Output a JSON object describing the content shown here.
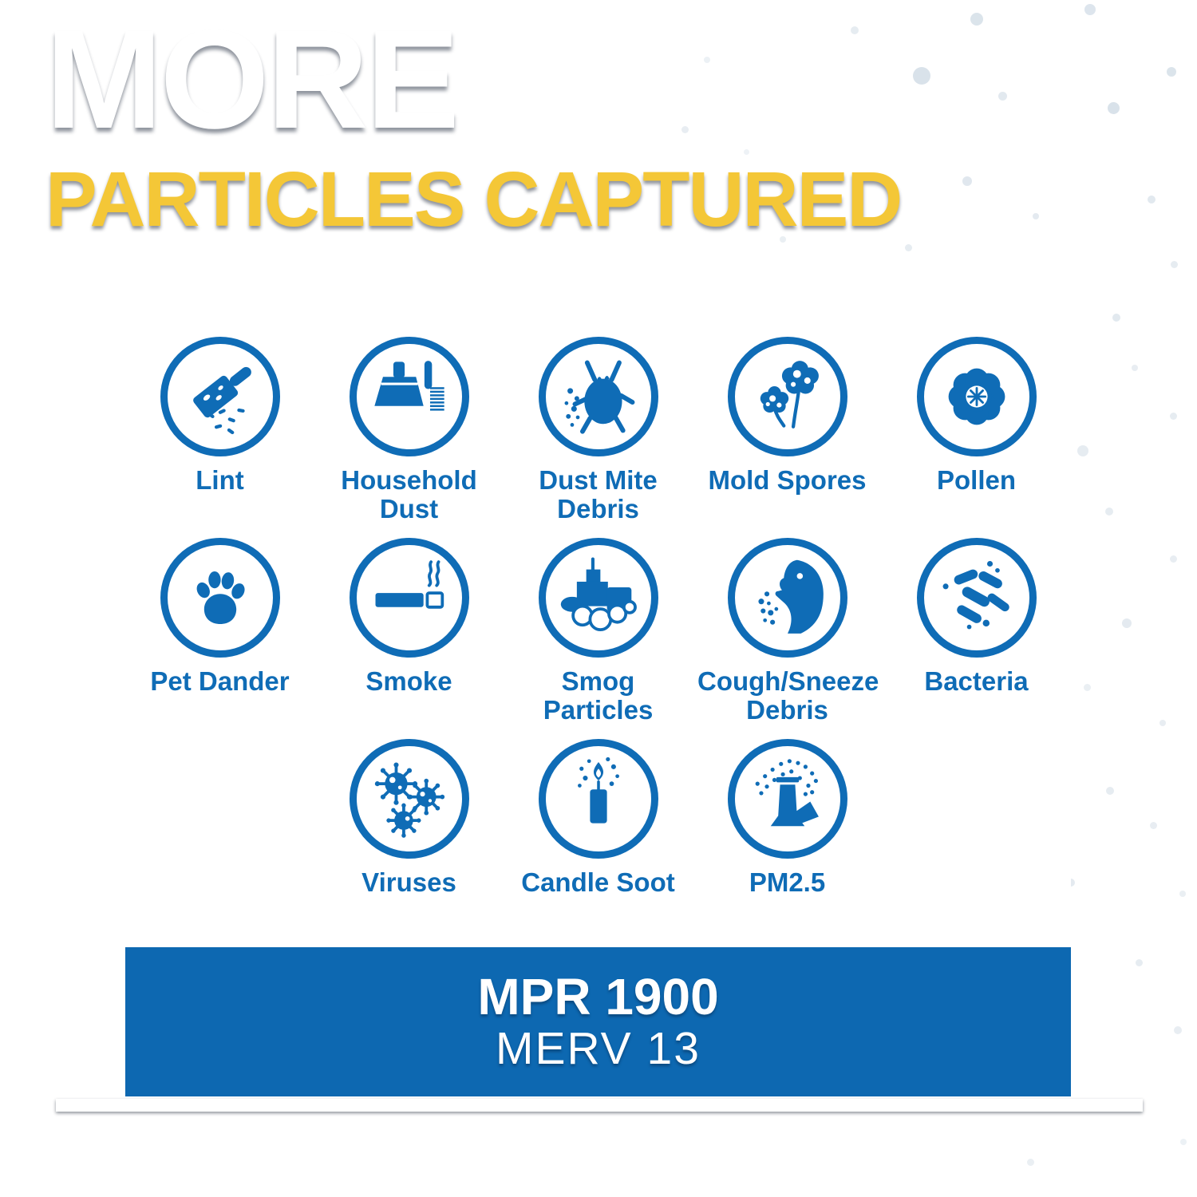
{
  "header": {
    "title": "MORE",
    "subtitle": "PARTICLES CAPTURED"
  },
  "card": {
    "particles": [
      {
        "label": "Lint",
        "icon": "lint-roller-icon"
      },
      {
        "label": "Household Dust",
        "icon": "dustpan-brush-icon"
      },
      {
        "label": "Dust Mite Debris",
        "icon": "dust-mite-icon"
      },
      {
        "label": "Mold Spores",
        "icon": "mold-spores-icon"
      },
      {
        "label": "Pollen",
        "icon": "pollen-flower-icon"
      },
      {
        "label": "Pet Dander",
        "icon": "paw-print-icon"
      },
      {
        "label": "Smoke",
        "icon": "cigarette-icon"
      },
      {
        "label": "Smog Particles",
        "icon": "city-smog-icon"
      },
      {
        "label": "Cough/Sneeze Debris",
        "icon": "sneezing-face-icon"
      },
      {
        "label": "Bacteria",
        "icon": "bacteria-rods-icon"
      },
      {
        "label": "Viruses",
        "icon": "virus-icon"
      },
      {
        "label": "Candle Soot",
        "icon": "candle-icon"
      },
      {
        "label": "PM2.5",
        "icon": "smokestack-icon"
      }
    ]
  },
  "footer": {
    "mpr_rating": "MPR 1900",
    "merv_rating": "MERV 13"
  },
  "colors": {
    "icon_blue": "#0f6cb6",
    "bar_blue": "#0d68b1",
    "subtitle_yellow": "#f4c737",
    "title_white": "#ffffff",
    "background_navy": "#14335a",
    "background_light_blue": "#49a0d0"
  }
}
